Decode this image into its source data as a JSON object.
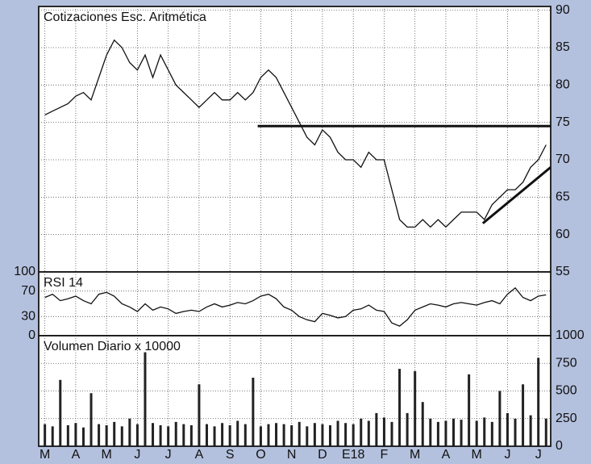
{
  "chart_data": [
    {
      "type": "line",
      "title": "Cotizaciones Esc. Aritmética",
      "color": "#111111",
      "x": [
        0,
        0.25,
        0.5,
        0.75,
        1,
        1.25,
        1.5,
        1.75,
        2,
        2.25,
        2.5,
        2.75,
        3,
        3.25,
        3.5,
        3.75,
        4,
        4.25,
        4.5,
        4.75,
        5,
        5.25,
        5.5,
        5.75,
        6,
        6.25,
        6.5,
        6.75,
        7,
        7.25,
        7.5,
        7.75,
        8,
        8.25,
        8.5,
        8.75,
        9,
        9.25,
        9.5,
        9.75,
        10,
        10.25,
        10.5,
        10.75,
        11,
        11.25,
        11.5,
        11.75,
        12,
        12.25,
        12.5,
        12.75,
        13,
        13.25,
        13.5,
        13.75,
        14,
        14.25,
        14.5,
        14.75,
        15,
        15.25,
        15.5,
        15.75,
        16,
        16.25
      ],
      "values": [
        76,
        76.5,
        77,
        77.5,
        78.5,
        79,
        78,
        81,
        84,
        86,
        85,
        83,
        82,
        84,
        81,
        84,
        82,
        80,
        79,
        78,
        77,
        78,
        79,
        78,
        78,
        79,
        78,
        79,
        81,
        82,
        81,
        79,
        77,
        75,
        73,
        72,
        74,
        73,
        71,
        70,
        70,
        69,
        71,
        70,
        70,
        66,
        62,
        61,
        61,
        62,
        61,
        62,
        61,
        62,
        63,
        63,
        63,
        62,
        64,
        65,
        66,
        66,
        67,
        69,
        70,
        72
      ],
      "trendlines": [
        {
          "x": [
            6.9,
            16.4
          ],
          "values": [
            74.5,
            74.5
          ]
        },
        {
          "x": [
            14.2,
            16.4
          ],
          "values": [
            61.5,
            69
          ]
        }
      ],
      "xlim": [
        -0.2,
        16.4
      ],
      "ylim": [
        55,
        90.5
      ],
      "yticks": [
        55,
        60,
        65,
        70,
        75,
        80,
        85,
        90
      ],
      "grid": true
    },
    {
      "type": "line",
      "title": "RSI 14",
      "color": "#111111",
      "x": [
        0,
        0.25,
        0.5,
        0.75,
        1,
        1.25,
        1.5,
        1.75,
        2,
        2.25,
        2.5,
        2.75,
        3,
        3.25,
        3.5,
        3.75,
        4,
        4.25,
        4.5,
        4.75,
        5,
        5.25,
        5.5,
        5.75,
        6,
        6.25,
        6.5,
        6.75,
        7,
        7.25,
        7.5,
        7.75,
        8,
        8.25,
        8.5,
        8.75,
        9,
        9.25,
        9.5,
        9.75,
        10,
        10.25,
        10.5,
        10.75,
        11,
        11.25,
        11.5,
        11.75,
        12,
        12.25,
        12.5,
        12.75,
        13,
        13.25,
        13.5,
        13.75,
        14,
        14.25,
        14.5,
        14.75,
        15,
        15.25,
        15.5,
        15.75,
        16,
        16.25
      ],
      "values": [
        60,
        65,
        55,
        58,
        62,
        55,
        50,
        65,
        68,
        62,
        50,
        45,
        38,
        50,
        40,
        45,
        42,
        35,
        38,
        40,
        38,
        45,
        50,
        45,
        48,
        52,
        50,
        55,
        62,
        65,
        58,
        45,
        40,
        30,
        25,
        22,
        35,
        32,
        28,
        30,
        40,
        42,
        48,
        40,
        38,
        20,
        15,
        25,
        40,
        45,
        50,
        48,
        45,
        50,
        52,
        50,
        48,
        52,
        55,
        50,
        65,
        75,
        60,
        55,
        62,
        64
      ],
      "xlim": [
        -0.2,
        16.4
      ],
      "ylim": [
        0,
        100
      ],
      "yticks": [
        0,
        30,
        70,
        100
      ],
      "grid": true
    },
    {
      "type": "bar",
      "title": "Volumen Diario x 10000",
      "color": "#222222",
      "x": [
        0,
        0.25,
        0.5,
        0.75,
        1,
        1.25,
        1.5,
        1.75,
        2,
        2.25,
        2.5,
        2.75,
        3,
        3.25,
        3.5,
        3.75,
        4,
        4.25,
        4.5,
        4.75,
        5,
        5.25,
        5.5,
        5.75,
        6,
        6.25,
        6.5,
        6.75,
        7,
        7.25,
        7.5,
        7.75,
        8,
        8.25,
        8.5,
        8.75,
        9,
        9.25,
        9.5,
        9.75,
        10,
        10.25,
        10.5,
        10.75,
        11,
        11.25,
        11.5,
        11.75,
        12,
        12.25,
        12.5,
        12.75,
        13,
        13.25,
        13.5,
        13.75,
        14,
        14.25,
        14.5,
        14.75,
        15,
        15.25,
        15.5,
        15.75,
        16,
        16.25
      ],
      "values": [
        200,
        180,
        600,
        190,
        210,
        170,
        480,
        200,
        190,
        220,
        180,
        250,
        200,
        850,
        210,
        190,
        180,
        220,
        200,
        190,
        560,
        200,
        180,
        210,
        190,
        230,
        200,
        620,
        180,
        200,
        210,
        200,
        190,
        220,
        180,
        210,
        200,
        190,
        230,
        210,
        200,
        250,
        230,
        300,
        260,
        220,
        700,
        300,
        680,
        400,
        250,
        220,
        230,
        250,
        240,
        650,
        230,
        260,
        220,
        500,
        300,
        250,
        560,
        280,
        800,
        250
      ],
      "xlim": [
        -0.2,
        16.4
      ],
      "ylim": [
        0,
        1000
      ],
      "yticks": [
        0,
        250,
        500,
        750,
        1000
      ],
      "xticks": [
        {
          "value": 0,
          "label": "M"
        },
        {
          "value": 1,
          "label": "A"
        },
        {
          "value": 2,
          "label": "M"
        },
        {
          "value": 3,
          "label": "J"
        },
        {
          "value": 4,
          "label": "J"
        },
        {
          "value": 5,
          "label": "A"
        },
        {
          "value": 6,
          "label": "S"
        },
        {
          "value": 7,
          "label": "O"
        },
        {
          "value": 8,
          "label": "N"
        },
        {
          "value": 9,
          "label": "D"
        },
        {
          "value": 10,
          "label": "E18"
        },
        {
          "value": 11,
          "label": "F"
        },
        {
          "value": 12,
          "label": "M"
        },
        {
          "value": 13,
          "label": "A"
        },
        {
          "value": 14,
          "label": "M"
        },
        {
          "value": 15,
          "label": "J"
        },
        {
          "value": 16,
          "label": "J"
        }
      ],
      "grid": true
    }
  ]
}
